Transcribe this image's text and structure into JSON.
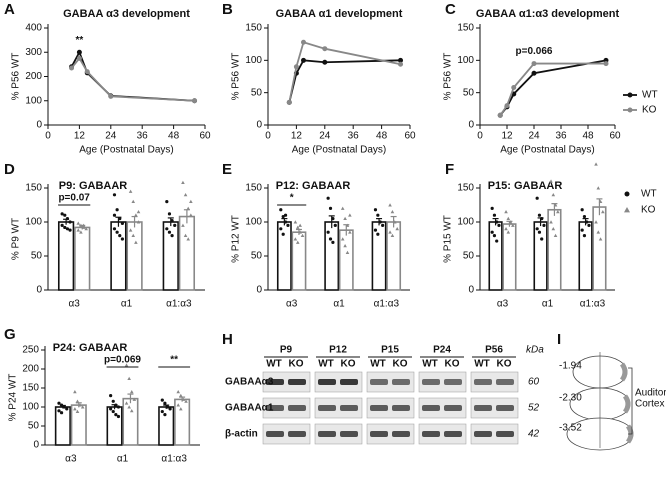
{
  "chart_data": [
    {
      "type": "line",
      "panel": "A",
      "title": "GABAA α3 development",
      "xlabel": "Age (Postnatal Days)",
      "ylabel": "% P56 WT",
      "x": [
        9,
        12,
        15,
        24,
        56
      ],
      "xlim": [
        0,
        60
      ],
      "xticks": [
        0,
        12,
        24,
        36,
        48,
        60
      ],
      "ylim": [
        0,
        400
      ],
      "yticks": [
        0,
        100,
        200,
        300,
        400
      ],
      "series": [
        {
          "color": "#111111",
          "values": [
            240,
            300,
            215,
            120,
            100
          ]
        },
        {
          "color": "#888888",
          "values": [
            235,
            275,
            220,
            118,
            100
          ]
        }
      ],
      "annotations": [
        {
          "text": "**",
          "x": 12
        }
      ]
    },
    {
      "type": "line",
      "panel": "B",
      "title": "GABAA α1 development",
      "xlabel": "Age (Postnatal Days)",
      "ylabel": "% P56 WT",
      "x": [
        9,
        12,
        15,
        24,
        56
      ],
      "xlim": [
        0,
        60
      ],
      "xticks": [
        0,
        12,
        24,
        36,
        48,
        60
      ],
      "ylim": [
        0,
        150
      ],
      "yticks": [
        0,
        50,
        100,
        150
      ],
      "series": [
        {
          "color": "#111111",
          "values": [
            35,
            80,
            100,
            97,
            100
          ]
        },
        {
          "color": "#888888",
          "values": [
            35,
            90,
            128,
            118,
            94
          ]
        }
      ]
    },
    {
      "type": "line",
      "panel": "C",
      "title": "GABAA α1:α3 development",
      "xlabel": "Age (Postnatal Days)",
      "ylabel": "% P56 WT",
      "x": [
        9,
        12,
        15,
        24,
        56
      ],
      "xlim": [
        0,
        60
      ],
      "xticks": [
        0,
        12,
        24,
        36,
        48,
        60
      ],
      "ylim": [
        0,
        150
      ],
      "yticks": [
        0,
        50,
        100,
        150
      ],
      "legend": "right",
      "series": [
        {
          "name": "WT",
          "color": "#111111",
          "values": [
            15,
            28,
            48,
            80,
            100
          ]
        },
        {
          "name": "KO",
          "color": "#888888",
          "values": [
            15,
            30,
            58,
            95,
            95
          ]
        }
      ],
      "annotations": [
        {
          "text": "p=0.066",
          "x": 24
        }
      ]
    },
    {
      "type": "bar",
      "panel": "D",
      "title": "P9: GABAAR",
      "ylabel": "% P9 WT",
      "categories": [
        "α3",
        "α1",
        "α1:α3"
      ],
      "ylim": [
        0,
        150
      ],
      "yticks": [
        0,
        50,
        100,
        150
      ],
      "series": [
        {
          "color": "#111111",
          "values": [
            100,
            100,
            100
          ],
          "errors": [
            4,
            7,
            6
          ],
          "points": [
            [
              112,
              110,
              105,
              100,
              95,
              92,
              90,
              88
            ],
            [
              140,
              118,
              105,
              98,
              90,
              85,
              80,
              75,
              110
            ],
            [
              130,
              112,
              102,
              95,
              90,
              85,
              80
            ]
          ]
        },
        {
          "color": "#888888",
          "values": [
            92,
            100,
            108
          ],
          "errors": [
            3,
            8,
            10
          ],
          "points": [
            [
              98,
              95,
              92,
              90,
              88,
              85,
              95
            ],
            [
              145,
              130,
              110,
              100,
              88,
              80,
              70,
              115
            ],
            [
              158,
              140,
              120,
              110,
              95,
              80,
              75,
              130
            ]
          ]
        }
      ],
      "annotations": [
        {
          "text": "p=0.07",
          "category": "α3"
        }
      ]
    },
    {
      "type": "bar",
      "panel": "E",
      "title": "P12: GABAAR",
      "ylabel": "% P12 WT",
      "categories": [
        "α3",
        "α1",
        "α1:α3"
      ],
      "ylim": [
        0,
        150
      ],
      "yticks": [
        0,
        50,
        100,
        150
      ],
      "series": [
        {
          "color": "#111111",
          "values": [
            100,
            100,
            100
          ],
          "errors": [
            5,
            9,
            5
          ],
          "points": [
            [
              118,
              108,
              100,
              95,
              90,
              82,
              110
            ],
            [
              135,
              120,
              105,
              95,
              85,
              75,
              70
            ],
            [
              118,
              110,
              100,
              95,
              88,
              82
            ]
          ]
        },
        {
          "color": "#888888",
          "values": [
            85,
            88,
            100
          ],
          "errors": [
            4,
            8,
            8
          ],
          "points": [
            [
              100,
              92,
              85,
              80,
              75,
              70,
              95
            ],
            [
              120,
              105,
              95,
              85,
              75,
              65,
              55,
              110
            ],
            [
              125,
              115,
              100,
              90,
              85,
              80
            ]
          ]
        }
      ],
      "annotations": [
        {
          "text": "*",
          "category": "α3"
        }
      ]
    },
    {
      "type": "bar",
      "panel": "F",
      "title": "P15: GABAAR",
      "ylabel": "% P15 WT",
      "categories": [
        "α3",
        "α1",
        "α1:α3"
      ],
      "ylim": [
        0,
        150
      ],
      "yticks": [
        0,
        50,
        100,
        150
      ],
      "legend": "right",
      "series": [
        {
          "name": "WT",
          "color": "#111111",
          "values": [
            100,
            100,
            100
          ],
          "errors": [
            5,
            6,
            5
          ],
          "points": [
            [
              120,
              110,
              100,
              95,
              85,
              80,
              72
            ],
            [
              135,
              110,
              105,
              95,
              90,
              85,
              75
            ],
            [
              118,
              108,
              100,
              95,
              88,
              80
            ]
          ]
        },
        {
          "name": "KO",
          "color": "#888888",
          "values": [
            97,
            118,
            122
          ],
          "errors": [
            4,
            9,
            12
          ],
          "points": [
            [
              115,
              105,
              100,
              95,
              90,
              85
            ],
            [
              160,
              140,
              125,
              115,
              100,
              90,
              80
            ],
            [
              185,
              150,
              130,
              115,
              100,
              85,
              75
            ]
          ]
        }
      ]
    },
    {
      "type": "bar",
      "panel": "G",
      "title": "P24: GABAAR",
      "ylabel": "% P24 WT",
      "categories": [
        "α3",
        "α1",
        "α1:α3"
      ],
      "ylim": [
        0,
        250
      ],
      "yticks": [
        0,
        50,
        100,
        150,
        200,
        250
      ],
      "series": [
        {
          "color": "#111111",
          "values": [
            100,
            100,
            100
          ],
          "errors": [
            4,
            6,
            5
          ],
          "points": [
            [
              110,
              105,
              100,
              95,
              90,
              85
            ],
            [
              130,
              115,
              105,
              100,
              95,
              88,
              80,
              75
            ],
            [
              118,
              110,
              100,
              95,
              88,
              80
            ]
          ]
        },
        {
          "color": "#888888",
          "values": [
            105,
            122,
            120
          ],
          "errors": [
            6,
            12,
            6
          ],
          "points": [
            [
              140,
              115,
              105,
              100,
              95,
              88
            ],
            [
              210,
              175,
              140,
              120,
              110,
              100,
              90
            ],
            [
              140,
              130,
              120,
              115,
              105,
              95
            ]
          ]
        }
      ],
      "annotations": [
        {
          "text": "p=0.069",
          "category": "α1"
        },
        {
          "text": "**",
          "category": "α1:α3"
        }
      ]
    }
  ],
  "blot": {
    "panel": "H",
    "ages": [
      "P9",
      "P12",
      "P15",
      "P24",
      "P56"
    ],
    "genotypes": [
      "WT",
      "KO"
    ],
    "unit": "kDa",
    "rows": [
      {
        "label": "GABAAα3",
        "size": "60"
      },
      {
        "label": "GABAAα1",
        "size": "52"
      },
      {
        "label": "β-actin",
        "size": "42"
      }
    ]
  },
  "atlas": {
    "panel": "I",
    "levels": [
      "-1.94",
      "-2.30",
      "-3.52"
    ],
    "region": [
      "Auditory",
      "Cortex"
    ]
  }
}
